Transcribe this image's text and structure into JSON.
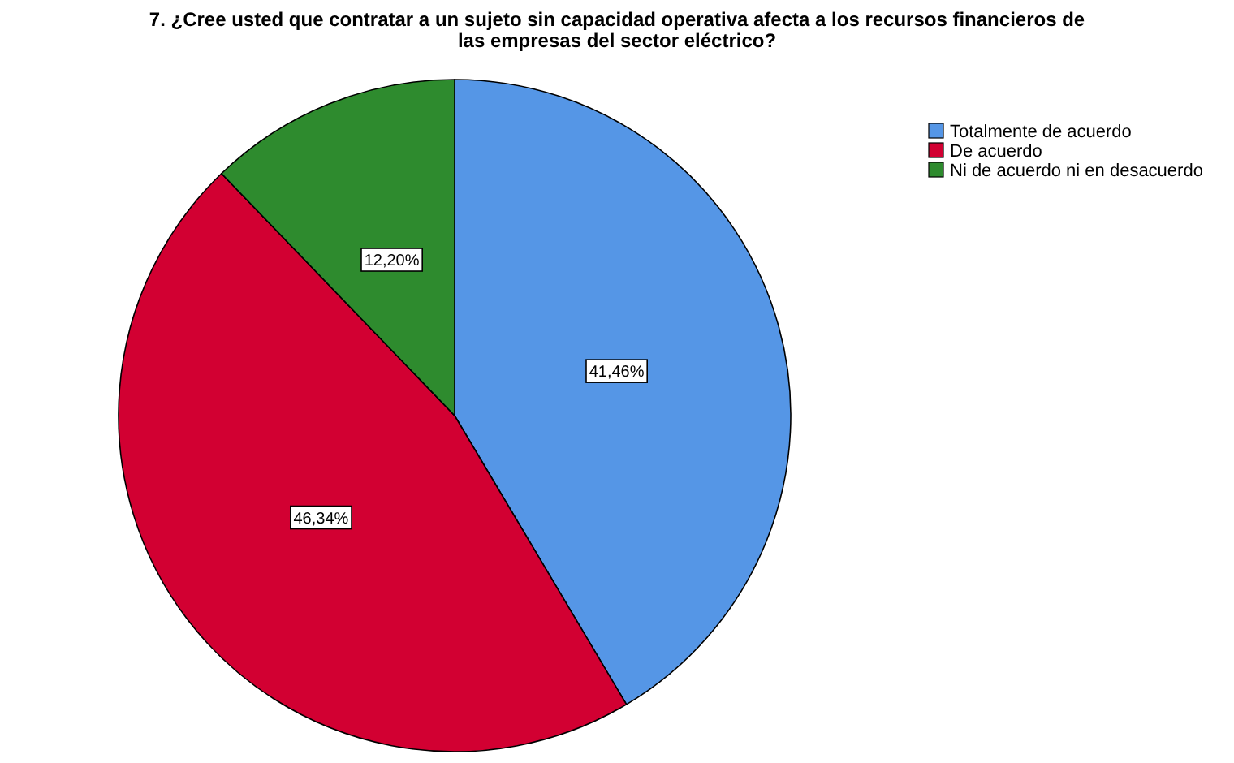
{
  "chart_data": {
    "type": "pie",
    "title": "7. ¿Cree usted que contratar a un sujeto sin capacidad operativa afecta a los recursos financieros de las empresas del sector eléctrico?",
    "categories": [
      "Totalmente de acuerdo",
      "De acuerdo",
      "Ni de acuerdo ni en desacuerdo"
    ],
    "values": [
      41.46,
      46.34,
      12.2
    ],
    "colors": [
      "#5596e6",
      "#d20032",
      "#2e8b2e"
    ],
    "value_labels": [
      "41,46%",
      "46,34%",
      "12,20%"
    ],
    "legend": "top right"
  }
}
